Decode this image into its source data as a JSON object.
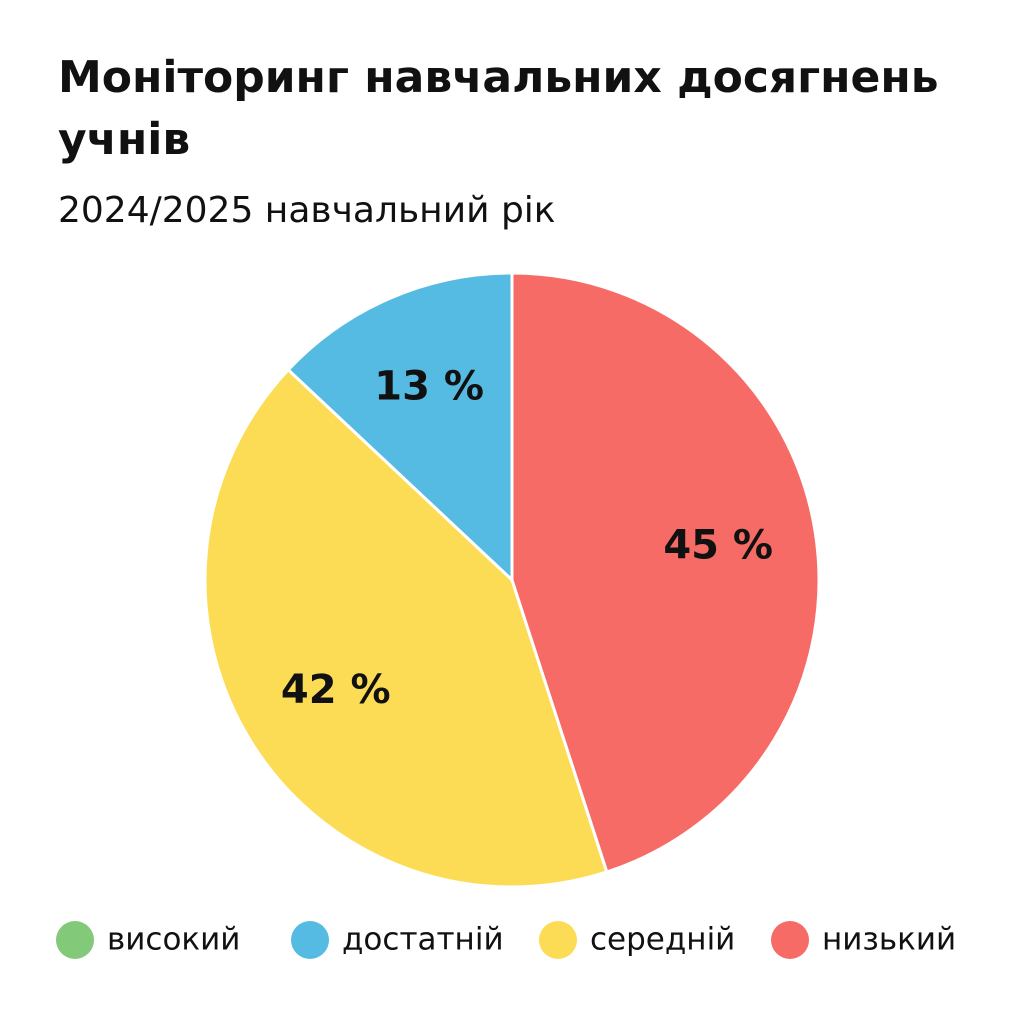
{
  "chart_data": {
    "type": "pie",
    "title": "Моніторинг навчальних досягнень учнів",
    "subtitle": "2024/2025 навчальний рік",
    "categories": [
      "високий",
      "достатній",
      "середній",
      "низький"
    ],
    "values": [
      0,
      13,
      42,
      45
    ],
    "value_labels": [
      null,
      "13 %",
      "42 %",
      "45 %"
    ],
    "colors": [
      "#82c97a",
      "#56bbe3",
      "#fcdc55",
      "#f76b66"
    ]
  }
}
